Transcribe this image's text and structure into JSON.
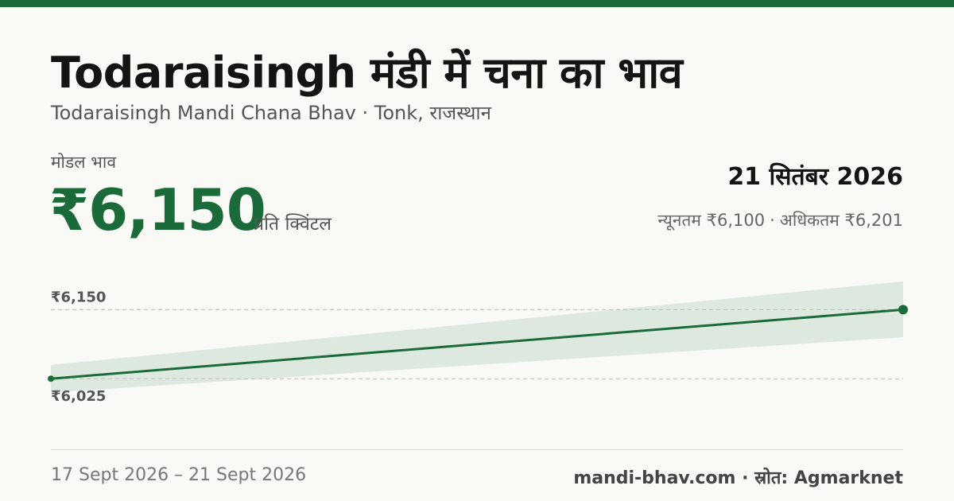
{
  "header": {
    "title": "Todaraisingh मंडी में चना का भाव",
    "subtitle": "Todaraisingh Mandi Chana Bhav · Tonk, राजस्थान"
  },
  "price": {
    "label": "मोडल भाव",
    "value": "₹6,150",
    "unit": "प्रति क्विंटल"
  },
  "summary": {
    "date": "21 सितंबर 2026",
    "min_text": "न्यूनतम ₹6,100",
    "separator": "·",
    "max_text": "अधिकतम ₹6,201"
  },
  "chart_data": {
    "type": "line",
    "x": [
      "17 Sept 2026",
      "21 Sept 2026"
    ],
    "y": [
      6025,
      6150
    ],
    "band_min": [
      6000,
      6100
    ],
    "band_max": [
      6050,
      6201
    ],
    "reference_lines": [
      {
        "value": 6150,
        "label": "₹6,150"
      },
      {
        "value": 6025,
        "label": "₹6,025"
      }
    ],
    "ylim": [
      5962,
      6221
    ],
    "grid": false,
    "legend": "none",
    "colors": {
      "line": "#1b6b3a",
      "band": "#dde9df",
      "ref": "#bdbdb5"
    }
  },
  "footer": {
    "date_range": "17 Sept 2026 – 21 Sept 2026",
    "source": "mandi-bhav.com · स्रोत: Agmarknet"
  },
  "colors": {
    "accent": "#1b6b3a",
    "background": "#f9f9f5"
  }
}
